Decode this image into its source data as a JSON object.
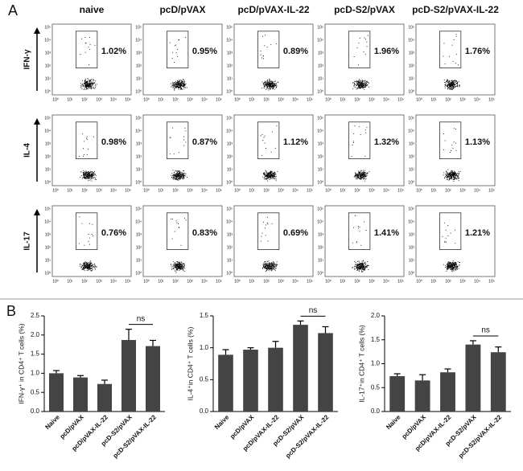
{
  "flow_panel": {
    "label": "A",
    "columns": [
      "naive",
      "pcD/pVAX",
      "pcD/pVAX-IL-22",
      "pcD-S2/pVAX",
      "pcD-S2/pVAX-IL-22"
    ],
    "rows": [
      "IFN-γ",
      "IL-4",
      "IL-17"
    ],
    "percentages": [
      [
        "1.02%",
        "0.95%",
        "0.89%",
        "1.96%",
        "1.76%"
      ],
      [
        "0.98%",
        "0.87%",
        "1.12%",
        "1.32%",
        "1.13%"
      ],
      [
        "0.76%",
        "0.83%",
        "0.69%",
        "1.41%",
        "1.21%"
      ]
    ],
    "axis_ticks": [
      "10⁰",
      "10¹",
      "10²",
      "10³",
      "10⁴",
      "10⁵"
    ]
  },
  "panel_b_label": "B",
  "chart_data": [
    {
      "type": "bar",
      "ylabel": "IFN-γ⁺ in CD4⁺ T cells (%)",
      "categories": [
        "Naive",
        "pcD/pVAX",
        "pcD/pVAX-IL-22",
        "pcD-S2/pVAX",
        "pcD-S2/pVAX-IL-22"
      ],
      "values": [
        1.0,
        0.89,
        0.72,
        1.87,
        1.71
      ],
      "errors": [
        0.07,
        0.05,
        0.1,
        0.28,
        0.15
      ],
      "color": "#444444",
      "ylim": [
        0,
        2.5
      ],
      "yticks": [
        {
          "value": 0,
          "label": "0.0"
        },
        0.5,
        {
          "value": 1,
          "label": "1.0"
        },
        1.5,
        {
          "value": 2,
          "label": "2.0"
        },
        2.5
      ],
      "annotation": "ns"
    },
    {
      "type": "bar",
      "ylabel": "IL-4⁺in CD4⁺ T cells (%)",
      "categories": [
        "Naive",
        "pcD/pVAX",
        "pcD/pVAX-IL-22",
        "pcD-S2/pVAX",
        "pcD-S2/pVAX-IL-22"
      ],
      "values": [
        0.89,
        0.97,
        1.0,
        1.36,
        1.23
      ],
      "errors": [
        0.08,
        0.03,
        0.1,
        0.06,
        0.1
      ],
      "color": "#444444",
      "ylim": [
        0,
        1.5
      ],
      "yticks": [
        {
          "value": 0,
          "label": "0.0"
        },
        0.5,
        {
          "value": 1,
          "label": "1.0"
        },
        1.5
      ],
      "annotation": "ns"
    },
    {
      "type": "bar",
      "ylabel": "IL-17⁺in CD4⁺ T cells (%)",
      "categories": [
        "Naive",
        "pcD/pVAX",
        "pcD/pVAX-IL-22",
        "pcD-S2/pVAX",
        "pcD-S2/pVAX-IL-22"
      ],
      "values": [
        0.74,
        0.65,
        0.82,
        1.4,
        1.24
      ],
      "errors": [
        0.05,
        0.12,
        0.07,
        0.08,
        0.11
      ],
      "color": "#444444",
      "ylim": [
        0,
        2.0
      ],
      "yticks": [
        {
          "value": 0,
          "label": "0.0"
        },
        0.5,
        {
          "value": 1,
          "label": "1.0"
        },
        1.5,
        {
          "value": 2,
          "label": "2.0"
        }
      ],
      "annotation": "ns"
    }
  ]
}
